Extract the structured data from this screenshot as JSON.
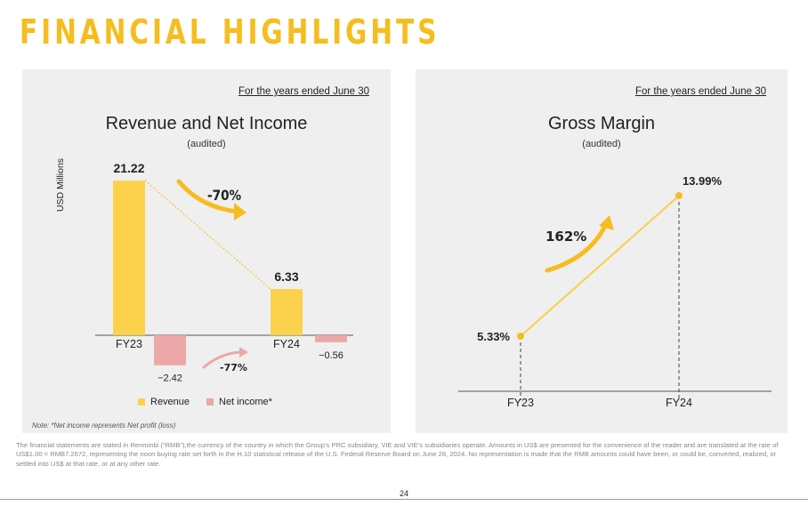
{
  "page_title": "FINANCIAL HIGHLIGHTS",
  "colors": {
    "accent": "#f5bd1f",
    "revenue": "#fcd14c",
    "net_income": "#eca8a8",
    "panel_bg": "#efefef"
  },
  "left_panel": {
    "period": "For the years ended June 30",
    "title": "Revenue and Net Income",
    "subtitle": "(audited)",
    "note": "Note: *Net income represents Net profit (loss)"
  },
  "right_panel": {
    "period": "For the years ended June 30",
    "title": "Gross Margin",
    "subtitle": "(audited)"
  },
  "chart_data": [
    {
      "type": "bar",
      "title": "Revenue and Net Income",
      "ylabel": "USD Millions",
      "categories": [
        "FY23",
        "FY24"
      ],
      "series": [
        {
          "name": "Revenue",
          "values": [
            21.22,
            6.33
          ],
          "labels": [
            "21.22",
            "6.33"
          ]
        },
        {
          "name": "Net income*",
          "values": [
            -2.42,
            -0.56
          ],
          "labels": [
            "−2.42",
            "−0.56"
          ]
        }
      ],
      "annotations": [
        "-70%",
        "-77%"
      ],
      "legend": "bottom"
    },
    {
      "type": "line",
      "title": "Gross Margin",
      "categories": [
        "FY23",
        "FY24"
      ],
      "series": [
        {
          "values": [
            5.33,
            13.99
          ],
          "labels": [
            "5.33%",
            "13.99%"
          ]
        }
      ],
      "annotations": [
        "162%"
      ]
    }
  ],
  "footer_text": "The financial statements are stated in Renminbi (“RMB”),the currency of the country in which the Group’s PRC subsidiary, VIE and VIE’s subsidiaries operate. Amounts in US$ are presented for the convenience of the reader and are translated at the rate of US$1.00 = RMB7.2672, representing the noon buying rate set forth in the H.10 statistical release of the U.S. Federal Reserve Board on June 28, 2024. No representation is made that the RMB amounts could have been, or could be, converted, realized, or settled into US$ at that rate, or at any other rate.",
  "page_number": "24"
}
